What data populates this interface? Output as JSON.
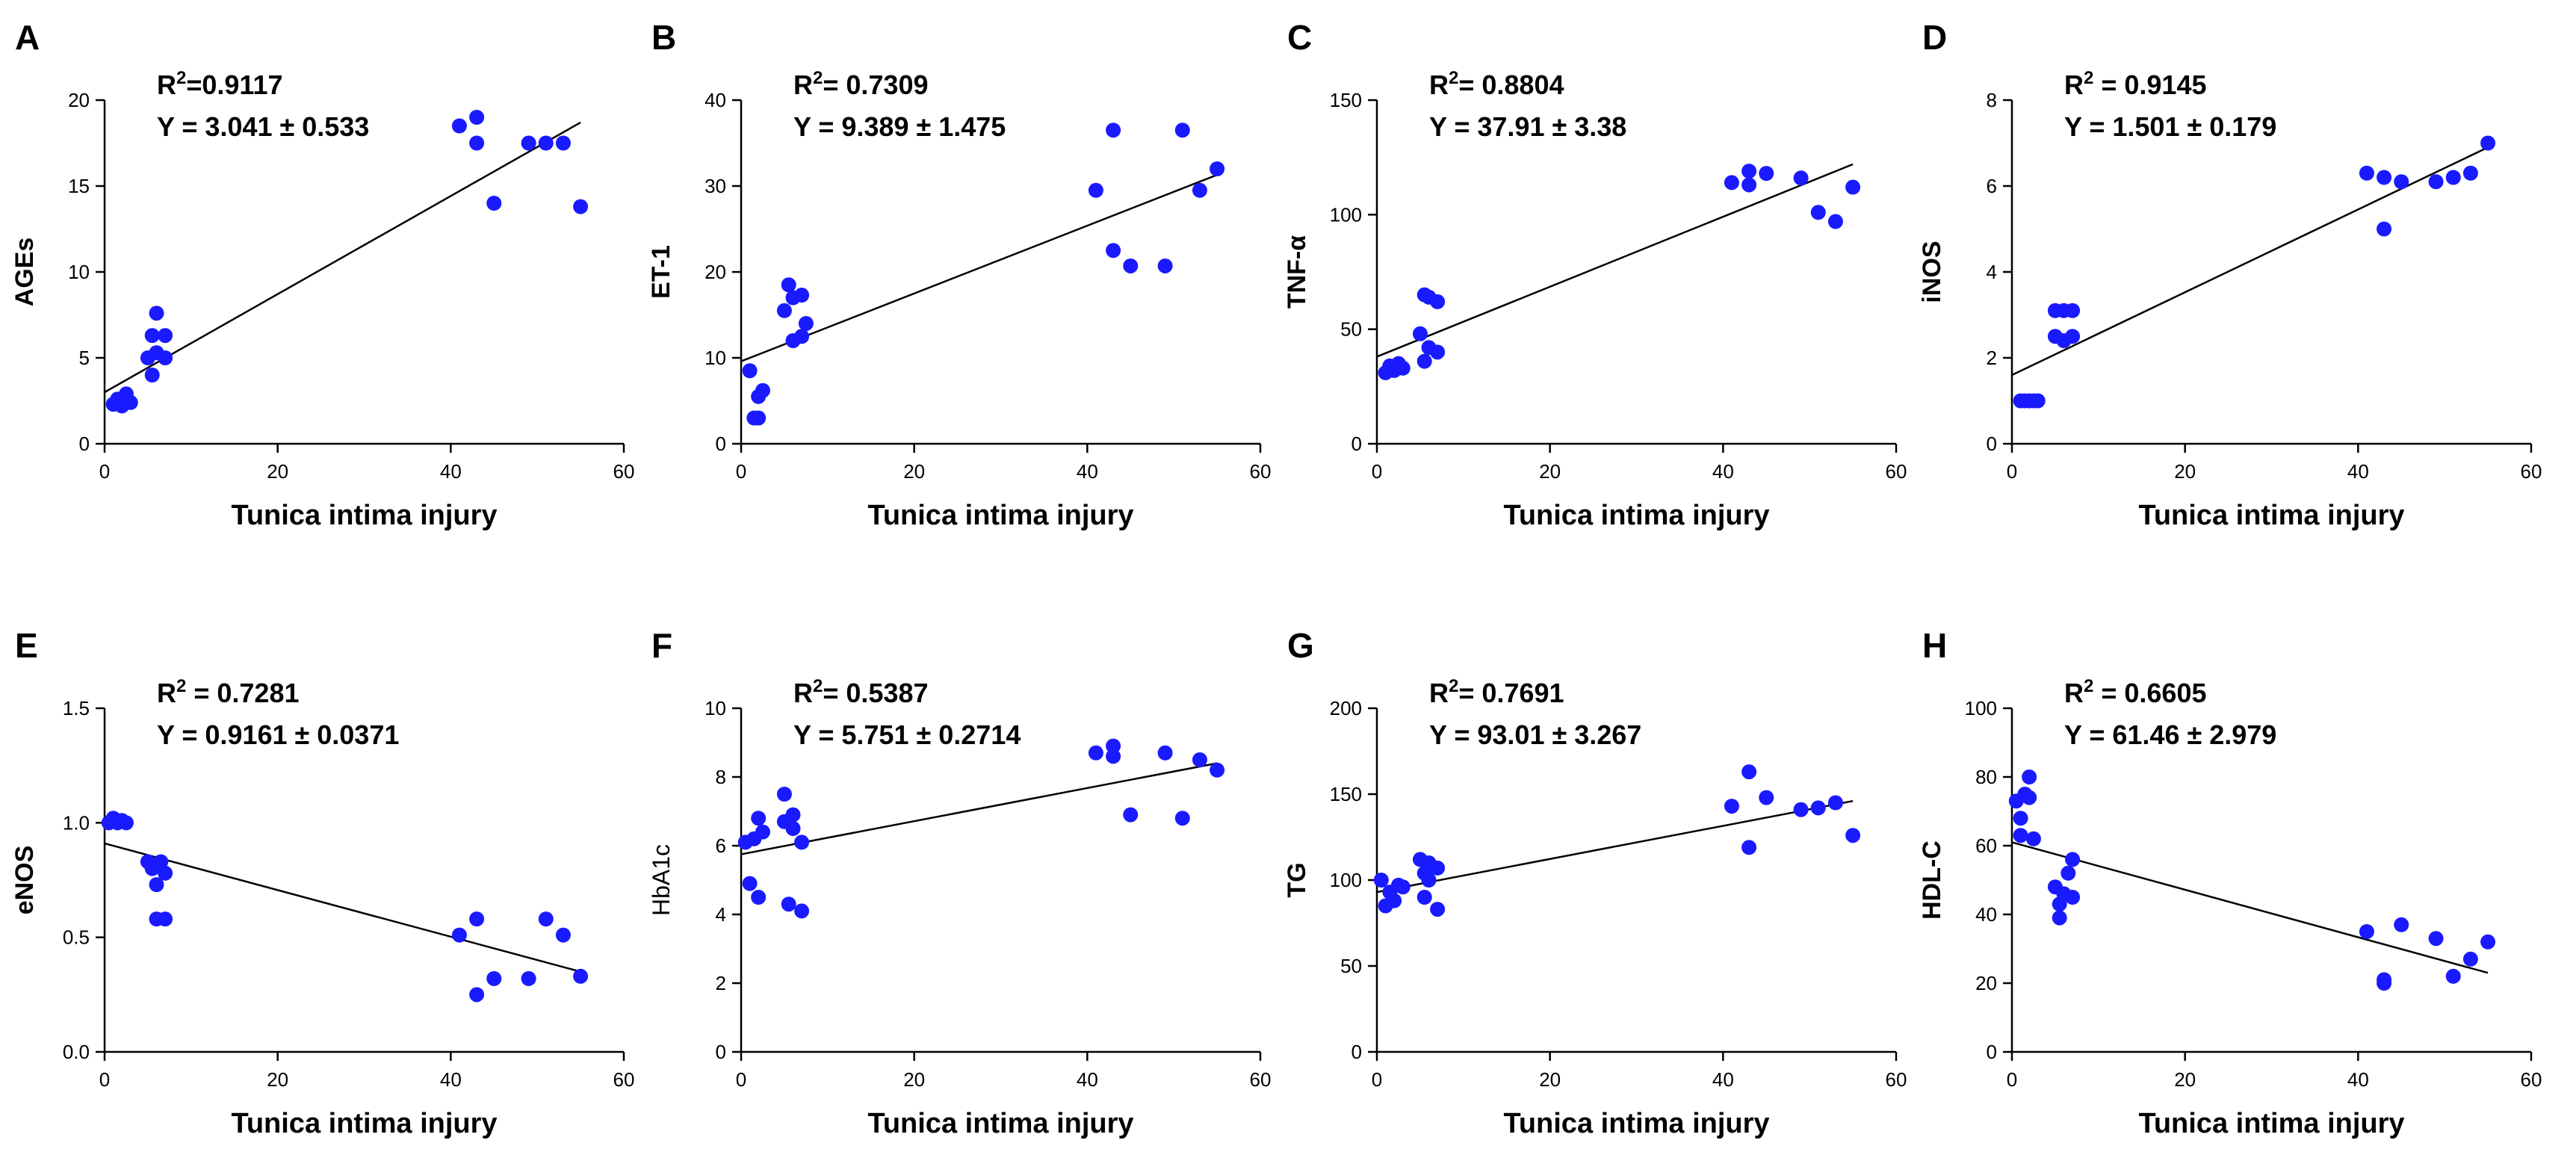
{
  "chart_data": [
    {
      "type": "scatter",
      "letter": "A",
      "ylabel": "AGEs",
      "xlabel": "Tunica intima injury",
      "xlim": [
        0,
        60
      ],
      "ylim": [
        0,
        20
      ],
      "xticks": [
        "0",
        "20",
        "40",
        "60"
      ],
      "yticks": [
        "0",
        "5",
        "10",
        "15",
        "20"
      ],
      "stat_r2": {
        "main": "R",
        "exp": "2",
        "rest": "=0.9117"
      },
      "stat_eq": "Y = 3.041 ± 0.533",
      "fit": [
        [
          0,
          3.0
        ],
        [
          55,
          18.7
        ]
      ],
      "points": [
        [
          1,
          2.3
        ],
        [
          1.5,
          2.6
        ],
        [
          2,
          2.2
        ],
        [
          2.5,
          2.9
        ],
        [
          3,
          2.4
        ],
        [
          5,
          5.0
        ],
        [
          5.5,
          6.3
        ],
        [
          5.5,
          4.0
        ],
        [
          6,
          7.6
        ],
        [
          6,
          5.3
        ],
        [
          7,
          6.3
        ],
        [
          7,
          5.0
        ],
        [
          41,
          18.5
        ],
        [
          43,
          19.0
        ],
        [
          43,
          17.5
        ],
        [
          45,
          14.0
        ],
        [
          49,
          17.5
        ],
        [
          51,
          17.5
        ],
        [
          53,
          17.5
        ],
        [
          55,
          13.8
        ]
      ]
    },
    {
      "type": "scatter",
      "letter": "B",
      "ylabel": "ET-1",
      "xlabel": "Tunica intima injury",
      "xlim": [
        0,
        60
      ],
      "ylim": [
        0,
        40
      ],
      "xticks": [
        "0",
        "20",
        "40",
        "60"
      ],
      "yticks": [
        "0",
        "10",
        "20",
        "30",
        "40"
      ],
      "stat_r2": {
        "main": "R",
        "exp": "2",
        "rest": "= 0.7309"
      },
      "stat_eq": "Y = 9.389 ± 1.475",
      "fit": [
        [
          0,
          9.6
        ],
        [
          55,
          31.3
        ]
      ],
      "points": [
        [
          1,
          8.5
        ],
        [
          1.5,
          3.0
        ],
        [
          2,
          5.5
        ],
        [
          2,
          3.0
        ],
        [
          2.5,
          6.2
        ],
        [
          5,
          15.5
        ],
        [
          5.5,
          18.5
        ],
        [
          6,
          17.0
        ],
        [
          6,
          12.0
        ],
        [
          7,
          17.3
        ],
        [
          7,
          12.5
        ],
        [
          7.5,
          14.0
        ],
        [
          41,
          29.5
        ],
        [
          43,
          36.5
        ],
        [
          43,
          22.5
        ],
        [
          45,
          20.7
        ],
        [
          49,
          20.7
        ],
        [
          51,
          36.5
        ],
        [
          53,
          29.5
        ],
        [
          55,
          32.0
        ]
      ]
    },
    {
      "type": "scatter",
      "letter": "C",
      "ylabel": "TNF-α",
      "xlabel": "Tunica intima injury",
      "xlim": [
        0,
        60
      ],
      "ylim": [
        0,
        150
      ],
      "xticks": [
        "0",
        "20",
        "40",
        "60"
      ],
      "yticks": [
        "0",
        "50",
        "100",
        "150"
      ],
      "stat_r2": {
        "main": "R",
        "exp": "2",
        "rest": "= 0.8804"
      },
      "stat_eq": "Y = 37.91 ± 3.38",
      "fit": [
        [
          0,
          38.0
        ],
        [
          55,
          122.0
        ]
      ],
      "points": [
        [
          1,
          31
        ],
        [
          1.5,
          34
        ],
        [
          2,
          32
        ],
        [
          2.5,
          35
        ],
        [
          3,
          33
        ],
        [
          5,
          48
        ],
        [
          5.5,
          65
        ],
        [
          5.5,
          36
        ],
        [
          6,
          64
        ],
        [
          6,
          42
        ],
        [
          7,
          62
        ],
        [
          7,
          40
        ],
        [
          41,
          114
        ],
        [
          43,
          119
        ],
        [
          43,
          113
        ],
        [
          45,
          118
        ],
        [
          49,
          116
        ],
        [
          51,
          101
        ],
        [
          53,
          97
        ],
        [
          55,
          112
        ]
      ]
    },
    {
      "type": "scatter",
      "letter": "D",
      "ylabel": "iNOS",
      "xlabel": "Tunica intima injury",
      "xlim": [
        0,
        60
      ],
      "ylim": [
        0,
        8
      ],
      "xticks": [
        "0",
        "20",
        "40",
        "60"
      ],
      "yticks": [
        "0",
        "2",
        "4",
        "6",
        "8"
      ],
      "stat_r2": {
        "main": "R",
        "exp": "2",
        "rest": " = 0.9145"
      },
      "stat_eq": "Y =  1.501 ± 0.179",
      "fit": [
        [
          0,
          1.6
        ],
        [
          55,
          6.9
        ]
      ],
      "points": [
        [
          1,
          1.0
        ],
        [
          1.5,
          1.0
        ],
        [
          2,
          1.0
        ],
        [
          2.5,
          1.0
        ],
        [
          3,
          1.0
        ],
        [
          5,
          2.5
        ],
        [
          5,
          3.1
        ],
        [
          6,
          3.1
        ],
        [
          6,
          2.4
        ],
        [
          7,
          3.1
        ],
        [
          7,
          2.5
        ],
        [
          41,
          6.3
        ],
        [
          43,
          6.2
        ],
        [
          43,
          5.0
        ],
        [
          45,
          6.1
        ],
        [
          49,
          6.1
        ],
        [
          51,
          6.2
        ],
        [
          53,
          6.3
        ],
        [
          55,
          7.0
        ]
      ]
    },
    {
      "type": "scatter",
      "letter": "E",
      "ylabel": "eNOS",
      "xlabel": "Tunica intima injury",
      "xlim": [
        0,
        60
      ],
      "ylim": [
        0,
        1.5
      ],
      "xticks": [
        "0",
        "20",
        "40",
        "60"
      ],
      "yticks": [
        "0.0",
        "0.5",
        "1.0",
        "1.5"
      ],
      "stat_r2": {
        "main": "R",
        "exp": "2",
        "rest": " = 0.7281"
      },
      "stat_eq": "Y = 0.9161 ± 0.0371",
      "fit": [
        [
          0,
          0.91
        ],
        [
          55,
          0.35
        ]
      ],
      "points": [
        [
          0.5,
          1.0
        ],
        [
          1,
          1.02
        ],
        [
          1.5,
          1.0
        ],
        [
          2,
          1.01
        ],
        [
          2.5,
          1.0
        ],
        [
          5,
          0.83
        ],
        [
          5.5,
          0.8
        ],
        [
          6,
          0.73
        ],
        [
          6,
          0.58
        ],
        [
          6.5,
          0.83
        ],
        [
          7,
          0.78
        ],
        [
          7,
          0.58
        ],
        [
          41,
          0.51
        ],
        [
          43,
          0.58
        ],
        [
          43,
          0.25
        ],
        [
          45,
          0.32
        ],
        [
          49,
          0.32
        ],
        [
          51,
          0.58
        ],
        [
          53,
          0.51
        ],
        [
          55,
          0.33
        ]
      ]
    },
    {
      "type": "scatter",
      "letter": "F",
      "ylabel": "HbA1c",
      "xlabel": "Tunica intima injury",
      "xlim": [
        0,
        60
      ],
      "ylim": [
        0,
        10
      ],
      "xticks": [
        "0",
        "20",
        "40",
        "60"
      ],
      "yticks": [
        "0",
        "2",
        "4",
        "6",
        "8",
        "10"
      ],
      "stat_r2": {
        "main": "R",
        "exp": "2",
        "rest": "= 0.5387"
      },
      "stat_eq": "Y = 5.751 ± 0.2714",
      "fit": [
        [
          0,
          5.75
        ],
        [
          55,
          8.4
        ]
      ],
      "points": [
        [
          0.5,
          6.1
        ],
        [
          1,
          4.9
        ],
        [
          1.5,
          6.2
        ],
        [
          2,
          4.5
        ],
        [
          2,
          6.8
        ],
        [
          2.5,
          6.4
        ],
        [
          5,
          7.5
        ],
        [
          5,
          6.7
        ],
        [
          5.5,
          4.3
        ],
        [
          6,
          6.9
        ],
        [
          6,
          6.5
        ],
        [
          7,
          4.1
        ],
        [
          7,
          6.1
        ],
        [
          41,
          8.7
        ],
        [
          43,
          8.9
        ],
        [
          43,
          8.6
        ],
        [
          45,
          6.9
        ],
        [
          49,
          8.7
        ],
        [
          51,
          6.8
        ],
        [
          53,
          8.5
        ],
        [
          55,
          8.2
        ]
      ]
    },
    {
      "type": "scatter",
      "letter": "G",
      "ylabel": "TG",
      "xlabel": "Tunica intima injury",
      "xlim": [
        0,
        60
      ],
      "ylim": [
        0,
        200
      ],
      "xticks": [
        "0",
        "20",
        "40",
        "60"
      ],
      "yticks": [
        "0",
        "50",
        "100",
        "150",
        "200"
      ],
      "stat_r2": {
        "main": "R",
        "exp": "2",
        "rest": "= 0.7691"
      },
      "stat_eq": "Y = 93.01 ± 3.267",
      "fit": [
        [
          0,
          93
        ],
        [
          55,
          146
        ]
      ],
      "points": [
        [
          0.5,
          100
        ],
        [
          1,
          85
        ],
        [
          1.5,
          93
        ],
        [
          2,
          88
        ],
        [
          2.5,
          97
        ],
        [
          3,
          96
        ],
        [
          5,
          112
        ],
        [
          5.5,
          104
        ],
        [
          5.5,
          90
        ],
        [
          6,
          110
        ],
        [
          6,
          100
        ],
        [
          7,
          107
        ],
        [
          7,
          83
        ],
        [
          41,
          143
        ],
        [
          43,
          163
        ],
        [
          43,
          119
        ],
        [
          45,
          148
        ],
        [
          49,
          141
        ],
        [
          51,
          142
        ],
        [
          53,
          145
        ],
        [
          55,
          126
        ]
      ]
    },
    {
      "type": "scatter",
      "letter": "H",
      "ylabel": "HDL-C",
      "xlabel": "Tunica intima injury",
      "xlim": [
        0,
        60
      ],
      "ylim": [
        0,
        100
      ],
      "xticks": [
        "0",
        "20",
        "40",
        "60"
      ],
      "yticks": [
        "0",
        "20",
        "40",
        "60",
        "80",
        "100"
      ],
      "stat_r2": {
        "main": "R",
        "exp": "2",
        "rest": " = 0.6605"
      },
      "stat_eq": "Y = 61.46 ± 2.979",
      "fit": [
        [
          0,
          61.0
        ],
        [
          55,
          23.0
        ]
      ],
      "points": [
        [
          0.5,
          73
        ],
        [
          1,
          68
        ],
        [
          1,
          63
        ],
        [
          1.5,
          75
        ],
        [
          2,
          80
        ],
        [
          2,
          74
        ],
        [
          2.5,
          62
        ],
        [
          5,
          48
        ],
        [
          5.5,
          43
        ],
        [
          5.5,
          39
        ],
        [
          6,
          46
        ],
        [
          6.5,
          52
        ],
        [
          7,
          56
        ],
        [
          7,
          45
        ],
        [
          41,
          35
        ],
        [
          43,
          20
        ],
        [
          43,
          21
        ],
        [
          45,
          37
        ],
        [
          49,
          33
        ],
        [
          51,
          22
        ],
        [
          53,
          27
        ],
        [
          55,
          32
        ]
      ]
    }
  ]
}
